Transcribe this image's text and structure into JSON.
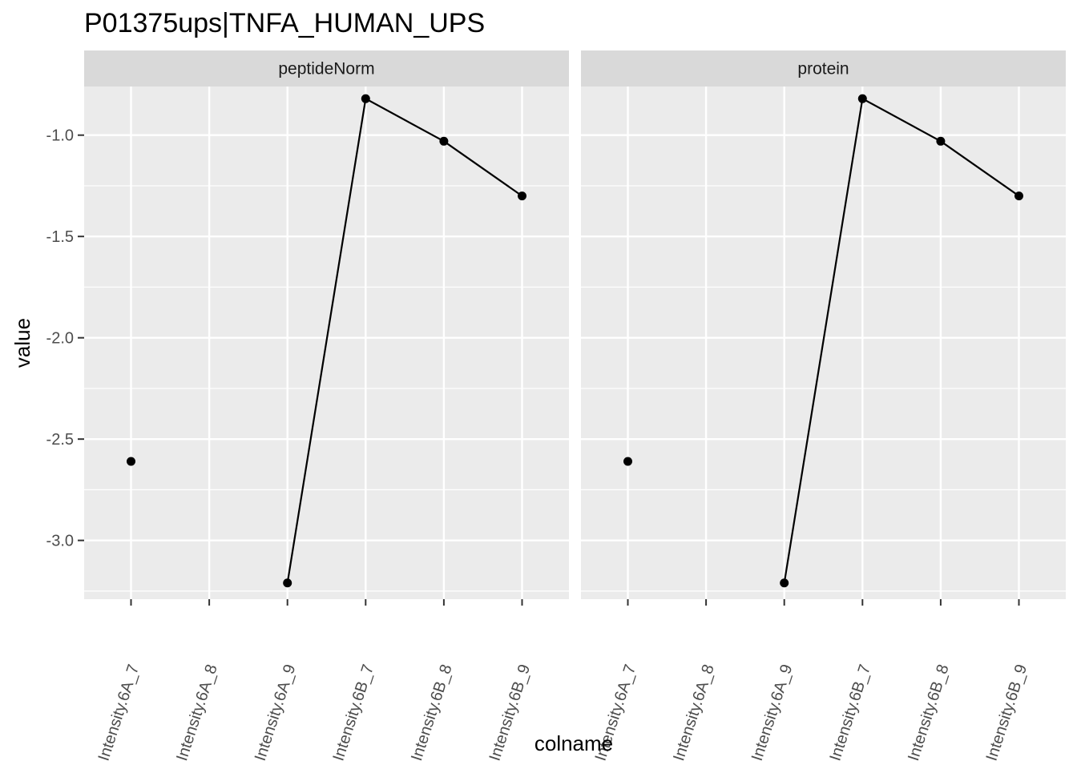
{
  "chart_data": {
    "type": "line",
    "title": "P01375ups|TNFA_HUMAN_UPS",
    "xlabel": "colname",
    "ylabel": "value",
    "ylim": [
      -3.29,
      -0.76
    ],
    "yticks": [
      -1.0,
      -1.5,
      -2.0,
      -2.5,
      -3.0
    ],
    "ytick_labels": [
      "-1.0",
      "-1.5",
      "-2.0",
      "-2.5",
      "-3.0"
    ],
    "categories": [
      "Intensity.6A_7",
      "Intensity.6A_8",
      "Intensity.6A_9",
      "Intensity.6B_7",
      "Intensity.6B_8",
      "Intensity.6B_9"
    ],
    "grid": true,
    "legend": "none",
    "colors": {
      "panel": "#ebebeb",
      "strip": "#d9d9d9",
      "grid": "#ffffff",
      "line": "#000000",
      "point": "#000000",
      "tick_text": "#4d4d4d"
    },
    "panels": [
      {
        "strip": "peptideNorm",
        "values": [
          -2.61,
          null,
          -3.21,
          -0.82,
          -1.03,
          -1.3
        ]
      },
      {
        "strip": "protein",
        "values": [
          -2.61,
          null,
          -3.21,
          -0.82,
          -1.03,
          -1.3
        ]
      }
    ]
  }
}
